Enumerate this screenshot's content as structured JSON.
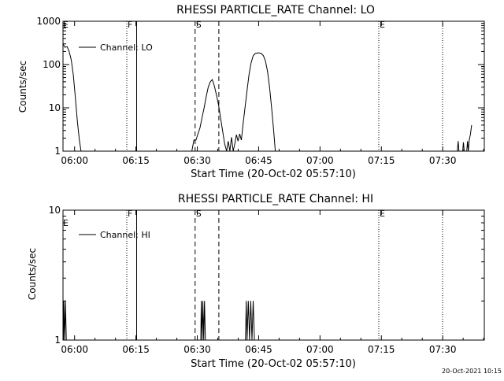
{
  "footer_timestamp": "20-Oct-2021 10:15",
  "chart_data": [
    {
      "type": "line",
      "title": "RHESSI PARTICLE_RATE Channel: LO",
      "xlabel": "Start Time (20-Oct-02 05:57:10)",
      "ylabel": "Counts/sec",
      "yscale": "log",
      "xlim": [
        0,
        103
      ],
      "ylim": [
        1,
        1000
      ],
      "xticks": [
        {
          "t": 2.83,
          "label": "06:00"
        },
        {
          "t": 17.83,
          "label": "06:15"
        },
        {
          "t": 32.83,
          "label": "06:30"
        },
        {
          "t": 47.83,
          "label": "06:45"
        },
        {
          "t": 62.83,
          "label": "07:00"
        },
        {
          "t": 77.83,
          "label": "07:15"
        },
        {
          "t": 92.83,
          "label": "07:30"
        }
      ],
      "yticks": [
        {
          "v": 1,
          "label": "1"
        },
        {
          "v": 10,
          "label": "10"
        },
        {
          "v": 100,
          "label": "100"
        },
        {
          "v": 1000,
          "label": "1000"
        }
      ],
      "x_unit": "minutes after start time",
      "legend": {
        "label": "Channel: LO",
        "position": "top-left"
      },
      "series": [
        {
          "name": "Channel: LO",
          "points": [
            [
              0,
              300
            ],
            [
              0.5,
              250
            ],
            [
              1,
              260
            ],
            [
              1.5,
              200
            ],
            [
              2,
              130
            ],
            [
              2.5,
              60
            ],
            [
              3,
              18
            ],
            [
              3.5,
              5
            ],
            [
              4,
              1.8
            ],
            [
              4.4,
              1
            ],
            [
              31.5,
              1
            ],
            [
              32,
              1.8
            ],
            [
              32.5,
              1.8
            ],
            [
              33,
              2.5
            ],
            [
              33.5,
              3.5
            ],
            [
              34,
              6
            ],
            [
              34.5,
              10
            ],
            [
              35,
              18
            ],
            [
              35.5,
              30
            ],
            [
              36,
              40
            ],
            [
              36.5,
              45
            ],
            [
              37,
              32
            ],
            [
              37.5,
              20
            ],
            [
              38,
              12
            ],
            [
              38.5,
              6
            ],
            [
              39,
              3
            ],
            [
              39.5,
              1.5
            ],
            [
              40,
              1
            ],
            [
              40.4,
              1.7
            ],
            [
              40.8,
              1
            ],
            [
              41.2,
              2.1
            ],
            [
              41.6,
              1
            ],
            [
              42,
              1.5
            ],
            [
              42.4,
              2.4
            ],
            [
              42.8,
              1.7
            ],
            [
              43.2,
              2.5
            ],
            [
              43.6,
              1.8
            ],
            [
              44,
              4
            ],
            [
              44.5,
              10
            ],
            [
              45,
              25
            ],
            [
              45.5,
              60
            ],
            [
              46,
              110
            ],
            [
              46.5,
              160
            ],
            [
              47,
              180
            ],
            [
              47.5,
              185
            ],
            [
              48,
              185
            ],
            [
              48.5,
              180
            ],
            [
              49,
              160
            ],
            [
              49.5,
              120
            ],
            [
              50,
              70
            ],
            [
              50.5,
              30
            ],
            [
              51,
              10
            ],
            [
              51.5,
              3
            ],
            [
              51.9,
              1
            ],
            [
              96.4,
              1
            ],
            [
              96.6,
              1.7
            ],
            [
              96.8,
              1
            ],
            [
              97.7,
              1
            ],
            [
              97.9,
              1.6
            ],
            [
              98.1,
              1
            ],
            [
              98.7,
              1
            ],
            [
              98.9,
              1.7
            ],
            [
              99.1,
              1
            ],
            [
              99.3,
              1.8
            ],
            [
              99.6,
              2.4
            ],
            [
              99.9,
              4
            ]
          ]
        }
      ],
      "markers": [
        {
          "label": "F",
          "t": 15.6,
          "style": "dotted"
        },
        {
          "label": "",
          "t": 18.0,
          "style": "solid"
        },
        {
          "label": "S",
          "t": 32.3,
          "style": "dashed"
        },
        {
          "label": "",
          "t": 38.1,
          "style": "dashed"
        },
        {
          "label": "E",
          "t": 77.2,
          "style": "dotted"
        },
        {
          "label": "",
          "t": 92.8,
          "style": "dotted"
        }
      ],
      "marker_letter_e_left": "E"
    },
    {
      "type": "line",
      "title": "RHESSI PARTICLE_RATE Channel: HI",
      "xlabel": "Start Time (20-Oct-02 05:57:10)",
      "ylabel": "Counts/sec",
      "yscale": "log",
      "xlim": [
        0,
        103
      ],
      "ylim": [
        1,
        10
      ],
      "xticks": [
        {
          "t": 2.83,
          "label": "06:00"
        },
        {
          "t": 17.83,
          "label": "06:15"
        },
        {
          "t": 32.83,
          "label": "06:30"
        },
        {
          "t": 47.83,
          "label": "06:45"
        },
        {
          "t": 62.83,
          "label": "07:00"
        },
        {
          "t": 77.83,
          "label": "07:15"
        },
        {
          "t": 92.83,
          "label": "07:30"
        }
      ],
      "yticks": [
        {
          "v": 1,
          "label": "1"
        },
        {
          "v": 10,
          "label": "10"
        }
      ],
      "x_unit": "minutes after start time",
      "legend": {
        "label": "Channel: HI",
        "position": "top-left"
      },
      "series": [
        {
          "name": "Channel: HI",
          "points": [
            [
              0.1,
              1
            ],
            [
              0.2,
              2
            ],
            [
              0.4,
              1
            ],
            [
              0.6,
              2
            ],
            [
              0.8,
              1
            ],
            [
              33.7,
              1
            ],
            [
              33.8,
              2
            ],
            [
              34,
              1
            ],
            [
              34.2,
              2
            ],
            [
              34.4,
              1
            ],
            [
              34.6,
              2
            ],
            [
              34.8,
              1
            ],
            [
              44.6,
              1
            ],
            [
              44.8,
              2
            ],
            [
              45,
              1
            ],
            [
              45.3,
              2
            ],
            [
              45.6,
              1
            ],
            [
              45.9,
              2
            ],
            [
              46.2,
              1
            ],
            [
              46.5,
              2
            ],
            [
              46.8,
              1
            ]
          ]
        }
      ],
      "markers": [
        {
          "label": "F",
          "t": 15.6,
          "style": "dotted"
        },
        {
          "label": "",
          "t": 18.0,
          "style": "solid"
        },
        {
          "label": "S",
          "t": 32.3,
          "style": "dashed"
        },
        {
          "label": "",
          "t": 38.1,
          "style": "dashed"
        },
        {
          "label": "E",
          "t": 77.2,
          "style": "dotted"
        },
        {
          "label": "",
          "t": 92.8,
          "style": "dotted"
        }
      ],
      "marker_letter_e_left": "E"
    }
  ]
}
